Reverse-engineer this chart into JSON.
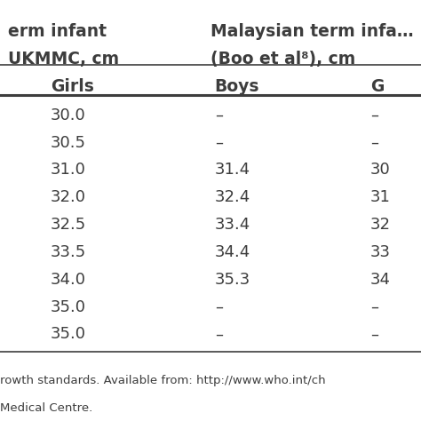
{
  "col1_header_line1": "erm infant",
  "col1_header_line2": "UKMMC, cm",
  "col1_subheader": "Girls",
  "col2_header_line1": "Malaysian term infa…",
  "col2_header_line2": "(Boo et al⁸), cm",
  "col2_subheader": "Boys",
  "col3_subheader": "G",
  "rows": [
    [
      "30.0",
      "–",
      "–"
    ],
    [
      "30.5",
      "–",
      "–"
    ],
    [
      "31.0",
      "31.4",
      "30"
    ],
    [
      "32.0",
      "32.4",
      "31"
    ],
    [
      "32.5",
      "33.4",
      "32"
    ],
    [
      "33.5",
      "34.4",
      "33"
    ],
    [
      "34.0",
      "35.3",
      "34"
    ],
    [
      "35.0",
      "–",
      "–"
    ],
    [
      "35.0",
      "–",
      "–"
    ]
  ],
  "footnote_line1": "rowth standards. Available from: http://www.who.int/ch",
  "footnote_line2": "Medical Centre.",
  "bg_color": "#ffffff",
  "text_color": "#3d3d3d",
  "line_color": "#3d3d3d",
  "font_size": 13,
  "header_font_size": 13.5
}
